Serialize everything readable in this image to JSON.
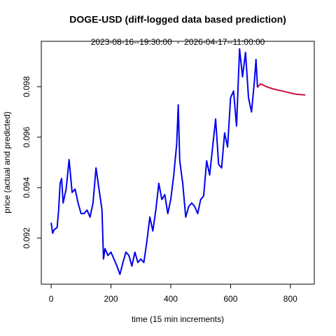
{
  "chart_data": {
    "type": "line",
    "title": "DOGE-USD (diff-logged data based prediction)",
    "subtitle": "2023-08-16--19:30:00  -  2026-04-17--11:00:00",
    "x_label": "time (15 min increments)",
    "y_label": "price (actual and predicted)",
    "xlim": [
      -33,
      880
    ],
    "xticks": [
      0,
      200,
      400,
      600,
      800
    ],
    "ylim": [
      0.09017,
      0.0998
    ],
    "yticks": [
      0.092,
      0.094,
      0.096,
      0.098
    ],
    "series": [
      {
        "color": "#0000ee",
        "x": [
          0,
          5,
          10,
          20,
          25,
          30,
          35,
          40,
          50,
          60,
          70,
          80,
          90,
          100,
          110,
          120,
          130,
          140,
          150,
          160,
          170,
          175,
          180,
          190,
          200,
          210,
          220,
          230,
          240,
          250,
          260,
          270,
          280,
          290,
          300,
          310,
          320,
          330,
          340,
          350,
          360,
          370,
          380,
          390,
          400,
          410,
          420,
          425,
          430,
          440,
          450,
          460,
          470,
          480,
          490,
          500,
          510,
          520,
          530,
          540,
          550,
          560,
          570,
          580,
          590,
          600,
          610,
          620,
          630,
          640,
          650,
          660,
          670,
          680,
          685,
          690
        ],
        "values": [
          0.09261,
          0.09219,
          0.09233,
          0.09242,
          0.09311,
          0.09417,
          0.09436,
          0.09339,
          0.09394,
          0.09511,
          0.09381,
          0.09394,
          0.09339,
          0.09297,
          0.09297,
          0.09311,
          0.09283,
          0.09339,
          0.09478,
          0.09394,
          0.09311,
          0.09117,
          0.09158,
          0.09131,
          0.09144,
          0.09117,
          0.09089,
          0.09056,
          0.09103,
          0.09144,
          0.09131,
          0.09089,
          0.09144,
          0.09103,
          0.09117,
          0.09103,
          0.09186,
          0.09283,
          0.09228,
          0.09311,
          0.09417,
          0.09353,
          0.09372,
          0.09297,
          0.09353,
          0.0945,
          0.09575,
          0.09728,
          0.09506,
          0.09417,
          0.09283,
          0.09325,
          0.09339,
          0.09325,
          0.09297,
          0.09353,
          0.09367,
          0.09506,
          0.0945,
          0.09561,
          0.09672,
          0.09492,
          0.09478,
          0.09617,
          0.09561,
          0.09756,
          0.09783,
          0.09644,
          0.0995,
          0.09839,
          0.09936,
          0.09756,
          0.097,
          0.09825,
          0.09908,
          0.09797
        ]
      },
      {
        "color": "#cc1144",
        "x": [
          690,
          700,
          710,
          720,
          740,
          760,
          780,
          800,
          820,
          850
        ],
        "values": [
          0.09797,
          0.09811,
          0.09806,
          0.098,
          0.09792,
          0.09786,
          0.09781,
          0.09775,
          0.0977,
          0.09767
        ]
      }
    ]
  }
}
